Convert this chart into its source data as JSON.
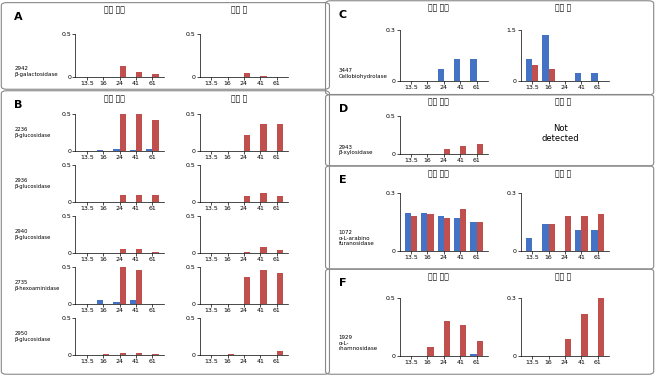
{
  "xticklabels": [
    "13.5",
    "16",
    "24",
    "41",
    "61"
  ],
  "x_positions": [
    0,
    1,
    2,
    3,
    4
  ],
  "bar_width": 0.38,
  "colors": {
    "blue": "#4472C4",
    "red": "#C0504D"
  },
  "header_intracellular": "세포 유래",
  "header_extracellular": "세포 외",
  "panel_A": {
    "label": "A",
    "enzyme_id": "2942",
    "enzyme_name": "β-galactosidase",
    "intra": {
      "blue": [
        0,
        0,
        0,
        0,
        0
      ],
      "red": [
        0,
        0,
        0.13,
        0.06,
        0.03
      ],
      "ylim": 0.5
    },
    "extra": {
      "blue": [
        0,
        0,
        0,
        0,
        0
      ],
      "red": [
        0,
        0,
        0.04,
        0.01,
        0
      ],
      "ylim": 0.5
    }
  },
  "panel_B": {
    "label": "B",
    "enzymes": [
      {
        "enzyme_id": "2236",
        "enzyme_name": "β-glucosidase",
        "intra": {
          "blue": [
            0,
            0.01,
            0.025,
            0.02,
            0.025
          ],
          "red": [
            0,
            0,
            0.5,
            0.5,
            0.42
          ],
          "ylim": 0.5
        },
        "extra": {
          "blue": [
            0,
            0,
            0,
            0,
            0
          ],
          "red": [
            0,
            0,
            0.22,
            0.37,
            0.37
          ],
          "ylim": 0.5
        }
      },
      {
        "enzyme_id": "2936",
        "enzyme_name": "β-glucosidase",
        "intra": {
          "blue": [
            0,
            0,
            0,
            0,
            0
          ],
          "red": [
            0,
            0,
            0.1,
            0.1,
            0.1
          ],
          "ylim": 0.5
        },
        "extra": {
          "blue": [
            0,
            0,
            0,
            0,
            0
          ],
          "red": [
            0,
            0,
            0.08,
            0.13,
            0.08
          ],
          "ylim": 0.5
        }
      },
      {
        "enzyme_id": "2940",
        "enzyme_name": "β-glucosidase",
        "intra": {
          "blue": [
            0,
            0,
            0,
            0,
            0
          ],
          "red": [
            0,
            0,
            0.06,
            0.05,
            0.015
          ],
          "ylim": 0.5
        },
        "extra": {
          "blue": [
            0,
            0,
            0,
            0,
            0
          ],
          "red": [
            0,
            0,
            0.01,
            0.09,
            0.04
          ],
          "ylim": 0.5
        }
      },
      {
        "enzyme_id": "2735",
        "enzyme_name": "β-hexoaminidase",
        "intra": {
          "blue": [
            0,
            0.06,
            0.025,
            0.055,
            0
          ],
          "red": [
            0,
            0,
            0.5,
            0.46,
            0
          ],
          "ylim": 0.5
        },
        "extra": {
          "blue": [
            0,
            0,
            0,
            0,
            0
          ],
          "red": [
            0,
            0,
            0.37,
            0.46,
            0.42
          ],
          "ylim": 0.5
        }
      },
      {
        "enzyme_id": "2950",
        "enzyme_name": "β-glucosidase",
        "intra": {
          "blue": [
            0,
            0,
            0,
            0,
            0
          ],
          "red": [
            0,
            0.02,
            0.03,
            0.025,
            0.01
          ],
          "ylim": 0.5
        },
        "extra": {
          "blue": [
            0,
            0,
            0,
            0,
            0
          ],
          "red": [
            0,
            0.02,
            0,
            0,
            0.06
          ],
          "ylim": 0.5
        }
      }
    ]
  },
  "panel_C": {
    "label": "C",
    "enzyme_id": "3447",
    "enzyme_name": "Cellobiohydrolase",
    "intra": {
      "blue": [
        0,
        0,
        0.07,
        0.13,
        0.13
      ],
      "red": [
        0,
        0,
        0,
        0,
        0
      ],
      "ylim": 0.3
    },
    "extra": {
      "blue": [
        0.65,
        1.35,
        0,
        0.22,
        0.22
      ],
      "red": [
        0.45,
        0.35,
        0,
        0,
        0
      ],
      "ylim": 1.5
    }
  },
  "panel_D": {
    "label": "D",
    "enzyme_id": "2943",
    "enzyme_name": "β-xylosidase",
    "intra": {
      "blue": [
        0,
        0,
        0,
        0,
        0
      ],
      "red": [
        0,
        0,
        0.07,
        0.1,
        0.13
      ],
      "ylim": 0.5
    },
    "not_detected_text": "Not\ndetected"
  },
  "panel_E": {
    "label": "E",
    "enzyme_id": "1072",
    "enzyme_name": "α-L-arabino\nfuranosidase",
    "intra": {
      "blue": [
        0.2,
        0.2,
        0.18,
        0.17,
        0.15
      ],
      "red": [
        0.18,
        0.19,
        0.17,
        0.22,
        0.15
      ],
      "ylim": 0.3
    },
    "extra": {
      "blue": [
        0.07,
        0.14,
        0,
        0.11,
        0.11
      ],
      "red": [
        0,
        0.14,
        0.18,
        0.18,
        0.19
      ],
      "ylim": 0.3
    }
  },
  "panel_F": {
    "label": "F",
    "enzyme_id": "1929",
    "enzyme_name": "α-L-\nrhamnosidase",
    "intra": {
      "blue": [
        0,
        0,
        0,
        0,
        0.02
      ],
      "red": [
        0,
        0.08,
        0.3,
        0.27,
        0.13
      ],
      "ylim": 0.5
    },
    "extra": {
      "blue": [
        0,
        0,
        0,
        0,
        0
      ],
      "red": [
        0,
        0,
        0.09,
        0.22,
        0.32
      ],
      "ylim": 0.3
    }
  }
}
